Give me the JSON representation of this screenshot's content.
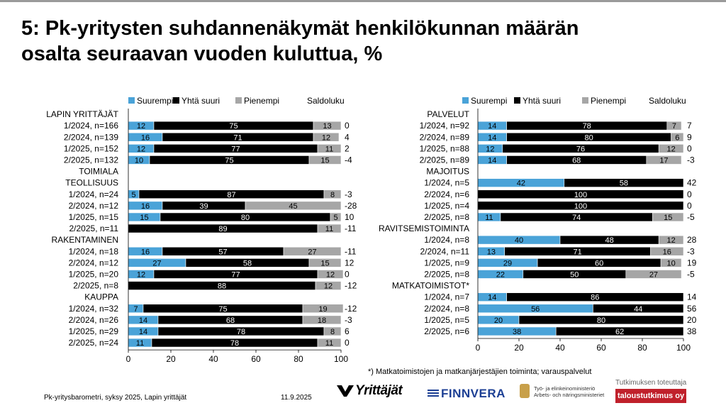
{
  "title_line1": "5: Pk-yritysten suhdannenäkymät henkilökunnan määrän",
  "title_line2": "osalta seuraavan vuoden kuluttua, %",
  "legend": {
    "series": [
      "Suurempi",
      "Yhtä suuri",
      "Pienempi"
    ],
    "saldo_label": "Saldoluku"
  },
  "colors": {
    "Suurempi": "#4aa3d8",
    "Yhtä suuri": "#000000",
    "Pienempi": "#a6a6a6"
  },
  "footer": {
    "source": "Pk-yritysbarometri, syksy 2025, Lapin yrittäjät",
    "date": "11.9.2025",
    "footnote": "*) Matkatoimistojen ja matkanjärjestäjien toiminta; varauspalvelut",
    "logo_yrittajat": "Yrittäjät",
    "logo_finnvera": "FINNVERA",
    "logo_tem_line1": "Työ- ja elinkeinoministeriö",
    "logo_tem_line2": "Arbets- och näringsministeriet",
    "tutkimus_label": "Tutkimuksen toteuttaja",
    "tutkimus_badge": "taloustutkimus oy"
  },
  "chart_data": [
    {
      "type": "bar",
      "stacked": true,
      "orientation": "horizontal",
      "xlim": [
        0,
        100
      ],
      "xticks": [
        0,
        20,
        40,
        60,
        80,
        100
      ],
      "series_names": [
        "Suurempi",
        "Yhtä suuri",
        "Pienempi"
      ],
      "groups": [
        {
          "name": "LAPIN YRITTÄJÄT",
          "rows": [
            {
              "label": "1/2024, n=166",
              "values": [
                12,
                75,
                13
              ],
              "saldo": "0"
            },
            {
              "label": "2/2024, n=139",
              "values": [
                16,
                71,
                12
              ],
              "saldo": "4"
            },
            {
              "label": "1/2025, n=152",
              "values": [
                12,
                77,
                11
              ],
              "saldo": "2"
            },
            {
              "label": "2/2025, n=132",
              "values": [
                10,
                75,
                15
              ],
              "saldo": "-4"
            }
          ]
        },
        {
          "name": "TOIMIALA",
          "rows": []
        },
        {
          "name": "TEOLLISUUS",
          "rows": [
            {
              "label": "1/2024, n=24",
              "values": [
                5,
                87,
                8
              ],
              "saldo": "-3"
            },
            {
              "label": "2/2024, n=12",
              "values": [
                16,
                39,
                45
              ],
              "saldo": "-28"
            },
            {
              "label": "1/2025, n=15",
              "values": [
                15,
                80,
                5
              ],
              "saldo": "10"
            },
            {
              "label": "2/2025, n=11",
              "values": [
                0,
                89,
                11
              ],
              "saldo": "-11"
            }
          ]
        },
        {
          "name": "RAKENTAMINEN",
          "rows": [
            {
              "label": "1/2024, n=18",
              "values": [
                16,
                57,
                27
              ],
              "saldo": "-11"
            },
            {
              "label": "2/2024, n=12",
              "values": [
                27,
                58,
                15
              ],
              "saldo": "12"
            },
            {
              "label": "1/2025, n=20",
              "values": [
                12,
                77,
                12
              ],
              "saldo": "0"
            },
            {
              "label": "2/2025, n=8",
              "values": [
                0,
                88,
                12
              ],
              "saldo": "-12"
            }
          ]
        },
        {
          "name": "KAUPPA",
          "rows": [
            {
              "label": "1/2024, n=32",
              "values": [
                7,
                75,
                19
              ],
              "saldo": "-12"
            },
            {
              "label": "2/2024, n=26",
              "values": [
                14,
                68,
                18
              ],
              "saldo": "-3"
            },
            {
              "label": "1/2025, n=29",
              "values": [
                14,
                78,
                8
              ],
              "saldo": "6"
            },
            {
              "label": "2/2025, n=24",
              "values": [
                11,
                78,
                11
              ],
              "saldo": "0"
            }
          ]
        }
      ]
    },
    {
      "type": "bar",
      "stacked": true,
      "orientation": "horizontal",
      "xlim": [
        0,
        100
      ],
      "xticks": [
        0,
        20,
        40,
        60,
        80,
        100
      ],
      "series_names": [
        "Suurempi",
        "Yhtä suuri",
        "Pienempi"
      ],
      "groups": [
        {
          "name": "PALVELUT",
          "rows": [
            {
              "label": "1/2024, n=92",
              "values": [
                14,
                78,
                7
              ],
              "saldo": "7"
            },
            {
              "label": "2/2024, n=89",
              "values": [
                14,
                80,
                6
              ],
              "saldo": "9"
            },
            {
              "label": "1/2025, n=88",
              "values": [
                12,
                76,
                12
              ],
              "saldo": "0"
            },
            {
              "label": "2/2025, n=89",
              "values": [
                14,
                68,
                17
              ],
              "saldo": "-3"
            }
          ]
        },
        {
          "name": "MAJOITUS",
          "rows": [
            {
              "label": "1/2024, n=5",
              "values": [
                42,
                58,
                0
              ],
              "saldo": "42"
            },
            {
              "label": "2/2024, n=6",
              "values": [
                0,
                100,
                0
              ],
              "saldo": "0"
            },
            {
              "label": "1/2025, n=4",
              "values": [
                0,
                100,
                0
              ],
              "saldo": "0"
            },
            {
              "label": "2/2025, n=8",
              "values": [
                11,
                74,
                15
              ],
              "saldo": "-5"
            }
          ]
        },
        {
          "name": "RAVITSEMISTOIMINTA",
          "rows": [
            {
              "label": "1/2024, n=8",
              "values": [
                40,
                48,
                12
              ],
              "saldo": "28"
            },
            {
              "label": "2/2024, n=11",
              "values": [
                13,
                71,
                16
              ],
              "saldo": "-3"
            },
            {
              "label": "1/2025, n=9",
              "values": [
                29,
                60,
                10
              ],
              "saldo": "19"
            },
            {
              "label": "2/2025, n=8",
              "values": [
                22,
                50,
                27
              ],
              "saldo": "-5"
            }
          ]
        },
        {
          "name": "MATKATOIMISTOT*",
          "rows": [
            {
              "label": "1/2024, n=7",
              "values": [
                14,
                86,
                0
              ],
              "saldo": "14"
            },
            {
              "label": "2/2024, n=8",
              "values": [
                56,
                44,
                0
              ],
              "saldo": "56"
            },
            {
              "label": "1/2025, n=5",
              "values": [
                20,
                80,
                0
              ],
              "saldo": "20"
            },
            {
              "label": "2/2025, n=6",
              "values": [
                38,
                62,
                0
              ],
              "saldo": "38"
            }
          ]
        }
      ]
    }
  ]
}
